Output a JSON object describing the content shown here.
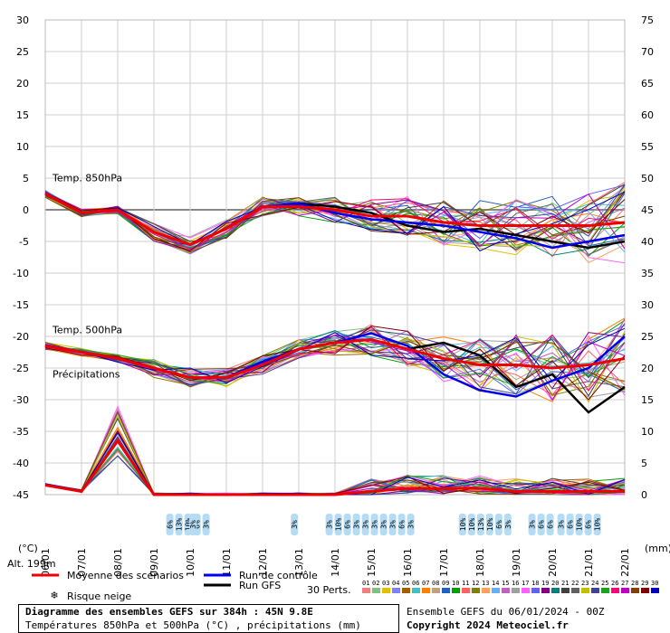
{
  "chart_data": {
    "type": "line",
    "x_dates": [
      "06/01",
      "07/01",
      "08/01",
      "09/01",
      "10/01",
      "11/01",
      "12/01",
      "13/01",
      "14/01",
      "15/01",
      "16/01",
      "17/01",
      "18/01",
      "19/01",
      "20/01",
      "21/01",
      "22/01"
    ],
    "left_axis": {
      "ticks": [
        30,
        25,
        20,
        15,
        10,
        5,
        0,
        -5,
        -10,
        -15,
        -20,
        -25,
        -30,
        -35,
        -40,
        -45
      ],
      "ylim": [
        -45,
        30
      ]
    },
    "right_axis": {
      "ticks": [
        75,
        70,
        65,
        60,
        55,
        50,
        45,
        40,
        35,
        30,
        25,
        20,
        15,
        10,
        5,
        0
      ],
      "ylim": [
        0,
        75
      ]
    },
    "left_unit": "(°C)",
    "right_unit": "(mm)",
    "panels": {
      "t850": "Temp. 850hPa",
      "t500": "Temp. 500hPa",
      "precip": "Précipitations"
    },
    "series": [
      {
        "name": "Moyenne des scénarios",
        "color": "#ee0000",
        "panel": "t850",
        "values": [
          2.5,
          -0.5,
          0,
          -3.5,
          -5.5,
          -3,
          0.5,
          0.5,
          0,
          -1,
          -1,
          -2,
          -2.5,
          -2.5,
          -2.5,
          -2.5,
          -2
        ]
      },
      {
        "name": "Run de contrôle",
        "color": "#0000ee",
        "panel": "t850",
        "values": [
          2.5,
          -0.5,
          0,
          -3.5,
          -5.5,
          -3,
          0.5,
          1,
          -0.5,
          -1.5,
          -2,
          -2.5,
          -3.5,
          -4.5,
          -6,
          -5,
          -4
        ]
      },
      {
        "name": "Run GFS",
        "color": "#000000",
        "panel": "t850",
        "values": [
          2.5,
          -0.5,
          0,
          -3.5,
          -5.5,
          -3,
          0.5,
          1,
          0.5,
          -0.5,
          -2.5,
          -3.5,
          -3,
          -4,
          -5,
          -6,
          -5
        ]
      },
      {
        "name": "Moyenne des scénarios",
        "color": "#ee0000",
        "panel": "t500",
        "values": [
          -21.5,
          -22.5,
          -23.5,
          -25,
          -26.5,
          -26.5,
          -24.5,
          -22,
          -21,
          -20.5,
          -22,
          -23.5,
          -24.5,
          -24.5,
          -25,
          -24.5,
          -23.5
        ]
      },
      {
        "name": "Run de contrôle",
        "color": "#0000ee",
        "panel": "t500",
        "values": [
          -21.5,
          -22.5,
          -23.5,
          -25,
          -26.5,
          -26.5,
          -24,
          -22,
          -21,
          -19.5,
          -21.5,
          -26,
          -28.5,
          -29.5,
          -27,
          -25,
          -20
        ]
      },
      {
        "name": "Run GFS",
        "color": "#000000",
        "panel": "t500",
        "values": [
          -21.5,
          -22.5,
          -23.5,
          -25,
          -26.5,
          -26.5,
          -24,
          -22,
          -21,
          -20.5,
          -22,
          -21,
          -23,
          -28,
          -26,
          -32,
          -28
        ]
      },
      {
        "name": "Moyenne des scénarios",
        "color": "#ee0000",
        "panel": "precip",
        "values": [
          1.5,
          0.5,
          8.5,
          0,
          0,
          0,
          0,
          0,
          0,
          0.5,
          1,
          1,
          1,
          0.5,
          0.5,
          0.5,
          0.5
        ]
      }
    ],
    "legend": {
      "mean": "Moyenne des scénarios",
      "control": "Run de contrôle",
      "gfs": "Run GFS",
      "snow": "Risque neige",
      "perts": "30 Perts.",
      "pert_numbers": [
        "01",
        "02",
        "03",
        "04",
        "05",
        "06",
        "07",
        "08",
        "09",
        "10",
        "11",
        "12",
        "13",
        "14",
        "15",
        "16",
        "17",
        "18",
        "19",
        "20",
        "21",
        "22",
        "23",
        "24",
        "25",
        "26",
        "27",
        "28",
        "29",
        "30"
      ],
      "pert_colors": [
        "#f08080",
        "#80c080",
        "#e0c000",
        "#8080ff",
        "#a06000",
        "#40c0c0",
        "#ff8000",
        "#c0a080",
        "#2060c0",
        "#00a000",
        "#ff6060",
        "#808000",
        "#ffa060",
        "#60b0ff",
        "#c060c0",
        "#a0a0a0",
        "#ff60ff",
        "#6060ff",
        "#800080",
        "#008080",
        "#404040",
        "#606060",
        "#c0c000",
        "#4040a0",
        "#20a020",
        "#ff0080",
        "#c000c0",
        "#804000",
        "#800000",
        "#0000c0"
      ]
    },
    "snow_risk": [
      {
        "pos": 0.215,
        "pcts": [
          "6%",
          "13%",
          "10%",
          "6%",
          "3%"
        ]
      },
      {
        "pos": 0.255,
        "pcts": [
          "3%"
        ]
      },
      {
        "pos": 0.43,
        "pcts": [
          "3%"
        ]
      },
      {
        "pos": 0.49,
        "pcts": [
          "3%",
          "10%",
          "6%",
          "3%",
          "3%",
          "3%",
          "3%",
          "3%",
          "6%",
          "3%"
        ]
      },
      {
        "pos": 0.72,
        "pcts": [
          "10%",
          "10%",
          "13%",
          "10%",
          "6%",
          "3%"
        ]
      },
      {
        "pos": 0.84,
        "pcts": [
          "3%",
          "6%",
          "6%"
        ]
      },
      {
        "pos": 0.89,
        "pcts": [
          "3%",
          "6%",
          "10%",
          "6%",
          "10%"
        ]
      }
    ],
    "altitude": "Alt. 199m",
    "grid": true
  },
  "footer": {
    "title": "Diagramme des ensembles GEFS sur 384h : 45N 9.8E",
    "subtitle": "Températures 850hPa et 500hPa (°C) , précipitations (mm)",
    "run": "Ensemble GEFS du 06/01/2024 - 00Z",
    "copyright": "Copyright 2024 Meteociel.fr"
  }
}
